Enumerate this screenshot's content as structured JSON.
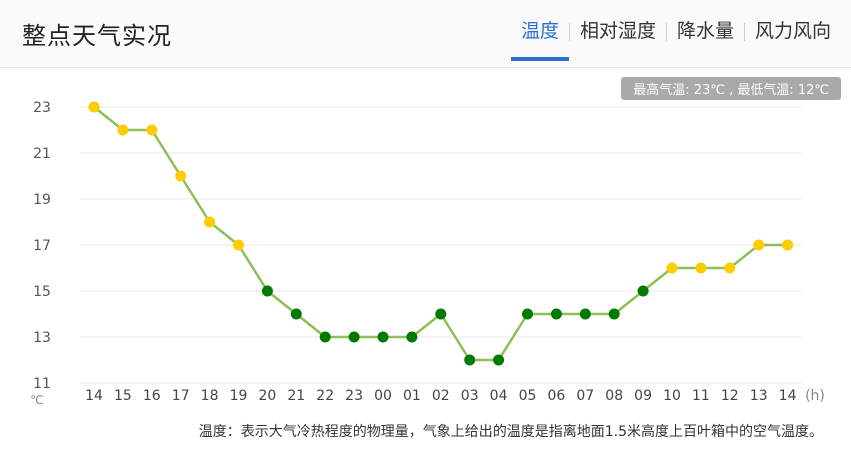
{
  "header": {
    "title": "整点天气实况",
    "tabs": [
      {
        "label": "温度",
        "active": true
      },
      {
        "label": "相对湿度",
        "active": false
      },
      {
        "label": "降水量",
        "active": false
      },
      {
        "label": "风力风向",
        "active": false
      }
    ],
    "accent_color": "#2f6fcf"
  },
  "badge": "最高气温: 23℃ , 最低气温: 12℃",
  "note": "温度：表示大气冷热程度的物理量，气象上给出的温度是指离地面1.5米高度上百叶箱中的空气温度。",
  "chart_data": {
    "type": "line",
    "x": [
      "14",
      "15",
      "16",
      "17",
      "18",
      "19",
      "20",
      "21",
      "22",
      "23",
      "00",
      "01",
      "02",
      "03",
      "04",
      "05",
      "06",
      "07",
      "08",
      "09",
      "10",
      "11",
      "12",
      "13",
      "14"
    ],
    "values": [
      23,
      22,
      22,
      20,
      18,
      17,
      15,
      14,
      13,
      13,
      13,
      13,
      14,
      12,
      12,
      14,
      14,
      14,
      14,
      15,
      16,
      16,
      16,
      17,
      17
    ],
    "day_points": [
      true,
      true,
      true,
      true,
      true,
      true,
      false,
      false,
      false,
      false,
      false,
      false,
      false,
      false,
      false,
      false,
      false,
      false,
      false,
      false,
      true,
      true,
      true,
      true,
      true
    ],
    "yticks": [
      23,
      21,
      19,
      17,
      15,
      13,
      11
    ],
    "ylim": [
      11,
      23
    ],
    "ylabel": "℃",
    "xlabel": "(h)",
    "grid": true,
    "line_color": "#8dbf55",
    "day_color": "#ffcc00",
    "night_color": "#007a00"
  }
}
